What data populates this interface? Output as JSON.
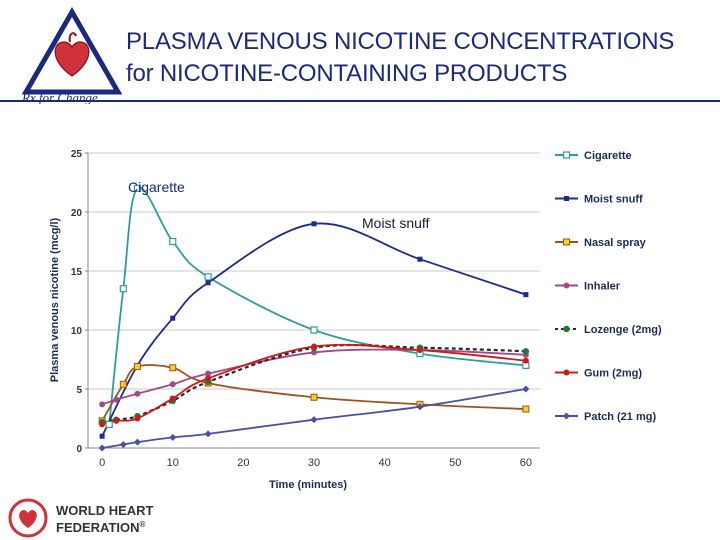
{
  "header": {
    "logo_text": "Rx for Change",
    "title_line1": "PLASMA VENOUS NICOTINE CONCENTRATIONS",
    "title_line2": "for NICOTINE-CONTAINING PRODUCTS"
  },
  "footer": {
    "org_line1": "WORLD HEART",
    "org_line2": "FEDERATION",
    "org_mark": "®"
  },
  "colors": {
    "title": "#1b2a7a",
    "cigarette": "#2aa198",
    "moist_snuff": "#1f2a8c",
    "nasal_spray": "#a0521e",
    "inhaler": "#a04a8c",
    "lozenge": "#2a2a2a",
    "gum": "#d01818",
    "patch": "#4a50a8"
  },
  "chart_data": {
    "type": "line",
    "title": "",
    "xlabel": "Time (minutes)",
    "ylabel": "Plasma venous nicotine (mcg/l)",
    "xlim": [
      -2,
      62
    ],
    "ylim": [
      0,
      25
    ],
    "xticks": [
      0,
      10,
      20,
      30,
      40,
      50,
      60
    ],
    "yticks": [
      0,
      5,
      10,
      15,
      20,
      25
    ],
    "grid": "horizontal",
    "legend_position": "right",
    "annotations": [
      {
        "text": "Cigarette",
        "x": 5,
        "y": 22
      },
      {
        "text": "Moist snuff",
        "x": 37,
        "y": 19.3
      }
    ],
    "series": [
      {
        "name": "Cigarette",
        "key": "cigarette",
        "marker": "square-open",
        "dash": "solid",
        "points": [
          [
            1,
            2
          ],
          [
            3,
            13.5
          ],
          [
            5,
            22
          ],
          [
            10,
            17.5
          ],
          [
            15,
            14.5
          ],
          [
            30,
            10
          ],
          [
            45,
            8
          ],
          [
            60,
            7
          ]
        ]
      },
      {
        "name": "Moist snuff",
        "key": "moist_snuff",
        "marker": "square",
        "dash": "solid",
        "points": [
          [
            0,
            1
          ],
          [
            5,
            7
          ],
          [
            10,
            11
          ],
          [
            15,
            14
          ],
          [
            30,
            19
          ],
          [
            45,
            16
          ],
          [
            60,
            13
          ]
        ]
      },
      {
        "name": "Nasal spray",
        "key": "nasal_spray",
        "marker": "square-yellow",
        "dash": "solid",
        "points": [
          [
            0,
            2.3
          ],
          [
            3,
            5.4
          ],
          [
            5,
            6.9
          ],
          [
            10,
            6.8
          ],
          [
            15,
            5.5
          ],
          [
            30,
            4.3
          ],
          [
            45,
            3.7
          ],
          [
            60,
            3.3
          ]
        ]
      },
      {
        "name": "Inhaler",
        "key": "inhaler",
        "marker": "circle",
        "dash": "solid",
        "points": [
          [
            0,
            3.7
          ],
          [
            2,
            4.1
          ],
          [
            5,
            4.6
          ],
          [
            10,
            5.4
          ],
          [
            15,
            6.3
          ],
          [
            30,
            8.1
          ],
          [
            45,
            8.3
          ],
          [
            60,
            7.9
          ]
        ]
      },
      {
        "name": "Lozenge (2mg)",
        "key": "lozenge",
        "marker": "circle-green",
        "dash": "dashed",
        "points": [
          [
            0,
            2.2
          ],
          [
            2,
            2.4
          ],
          [
            5,
            2.7
          ],
          [
            10,
            4.0
          ],
          [
            15,
            5.6
          ],
          [
            30,
            8.5
          ],
          [
            45,
            8.5
          ],
          [
            60,
            8.2
          ]
        ]
      },
      {
        "name": "Gum (2mg)",
        "key": "gum",
        "marker": "circle",
        "dash": "solid",
        "points": [
          [
            0,
            2.0
          ],
          [
            2,
            2.3
          ],
          [
            5,
            2.5
          ],
          [
            10,
            4.2
          ],
          [
            15,
            5.9
          ],
          [
            30,
            8.6
          ],
          [
            45,
            8.3
          ],
          [
            60,
            7.4
          ]
        ]
      },
      {
        "name": "Patch (21 mg)",
        "key": "patch",
        "marker": "diamond",
        "dash": "solid",
        "points": [
          [
            0,
            0
          ],
          [
            3,
            0.3
          ],
          [
            5,
            0.5
          ],
          [
            10,
            0.9
          ],
          [
            15,
            1.2
          ],
          [
            30,
            2.4
          ],
          [
            45,
            3.5
          ],
          [
            60,
            5.0
          ]
        ]
      }
    ]
  }
}
